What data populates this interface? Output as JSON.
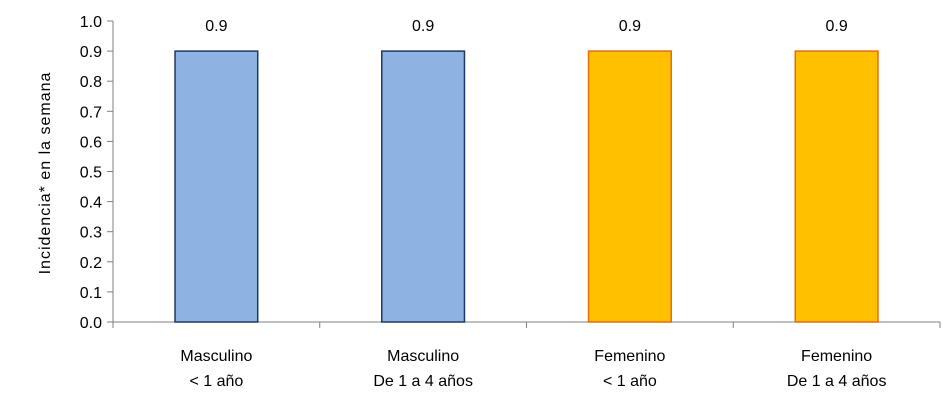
{
  "chart_data": {
    "type": "bar",
    "title": "",
    "xlabel": "",
    "ylabel": "Incidencia* en la semana",
    "ylim": [
      0,
      1.0
    ],
    "yticks": [
      "0.0",
      "0.1",
      "0.2",
      "0.3",
      "0.4",
      "0.5",
      "0.6",
      "0.7",
      "0.8",
      "0.9",
      "1.0"
    ],
    "grid": false,
    "legend": "none",
    "categories": [
      [
        "Masculino",
        "< 1 año"
      ],
      [
        "Masculino",
        "De 1 a 4 años"
      ],
      [
        "Femenino",
        "< 1 año"
      ],
      [
        "Femenino",
        "De 1 a 4 años"
      ]
    ],
    "values": [
      0.9,
      0.9,
      0.9,
      0.9
    ],
    "data_labels": [
      "0.9",
      "0.9",
      "0.9",
      "0.9"
    ],
    "colors": {
      "fill": [
        "#8db3e2",
        "#8db3e2",
        "#ffc000",
        "#ffc000"
      ],
      "stroke": [
        "#1f3864",
        "#1f3864",
        "#e46c0a",
        "#e46c0a"
      ],
      "axis": "#808080"
    }
  }
}
